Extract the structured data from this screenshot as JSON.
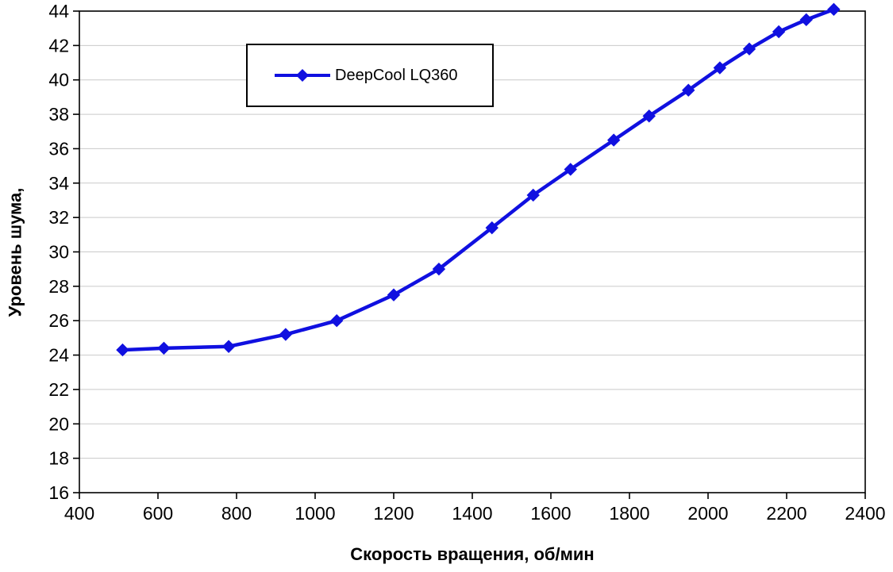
{
  "chart_data": {
    "type": "line",
    "title": "",
    "xlabel": "Скорость вращения, об/мин",
    "ylabel": "Уровень шума,",
    "xlim": [
      400,
      2400
    ],
    "ylim": [
      16,
      44
    ],
    "x_ticks": [
      400,
      600,
      800,
      1000,
      1200,
      1400,
      1600,
      1800,
      2000,
      2200,
      2400
    ],
    "y_ticks": [
      16,
      18,
      20,
      22,
      24,
      26,
      28,
      30,
      32,
      34,
      36,
      38,
      40,
      42,
      44
    ],
    "grid": "horizontal-only",
    "legend_position": "top-left-inside",
    "colors": {
      "line": "#1010e0",
      "grid": "#c9c9c9",
      "axis": "#000000",
      "background": "#ffffff"
    },
    "series": [
      {
        "name": "DeepCool LQ360",
        "color": "#1010e0",
        "marker": "diamond",
        "points": [
          [
            510,
            24.3
          ],
          [
            615,
            24.4
          ],
          [
            780,
            24.5
          ],
          [
            925,
            25.2
          ],
          [
            1055,
            26.0
          ],
          [
            1200,
            27.5
          ],
          [
            1315,
            29.0
          ],
          [
            1450,
            31.4
          ],
          [
            1555,
            33.3
          ],
          [
            1650,
            34.8
          ],
          [
            1760,
            36.5
          ],
          [
            1850,
            37.9
          ],
          [
            1950,
            39.4
          ],
          [
            2030,
            40.7
          ],
          [
            2105,
            41.8
          ],
          [
            2180,
            42.8
          ],
          [
            2250,
            43.5
          ],
          [
            2320,
            44.1
          ]
        ]
      }
    ]
  }
}
